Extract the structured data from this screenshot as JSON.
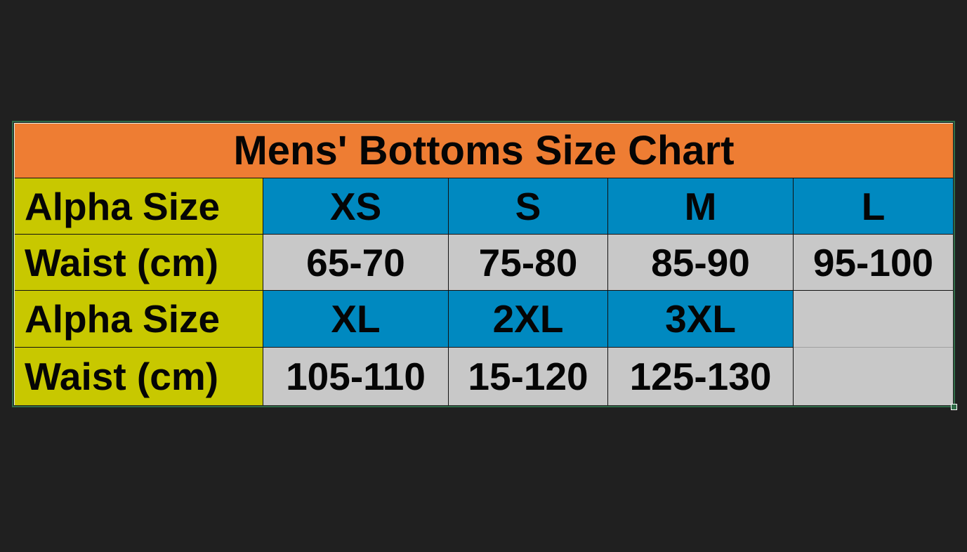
{
  "title": "Mens' Bottoms Size Chart",
  "rows": [
    {
      "label": "Alpha Size",
      "cells": [
        "XS",
        "S",
        "M",
        "L"
      ]
    },
    {
      "label": "Waist (cm)",
      "cells": [
        "65-70",
        "75-80",
        "85-90",
        "95-100"
      ]
    },
    {
      "label": "Alpha Size",
      "cells": [
        "XL",
        "2XL",
        "3XL",
        ""
      ]
    },
    {
      "label": "Waist (cm)",
      "cells": [
        "105-110",
        "15-120",
        "125-130",
        ""
      ]
    }
  ],
  "colors": {
    "title_bg": "#ee7d33",
    "label_bg": "#c8c800",
    "alpha_bg": "#0089c0",
    "waist_bg": "#c8c8c8",
    "background": "#202020",
    "selection": "#2e6b47"
  }
}
